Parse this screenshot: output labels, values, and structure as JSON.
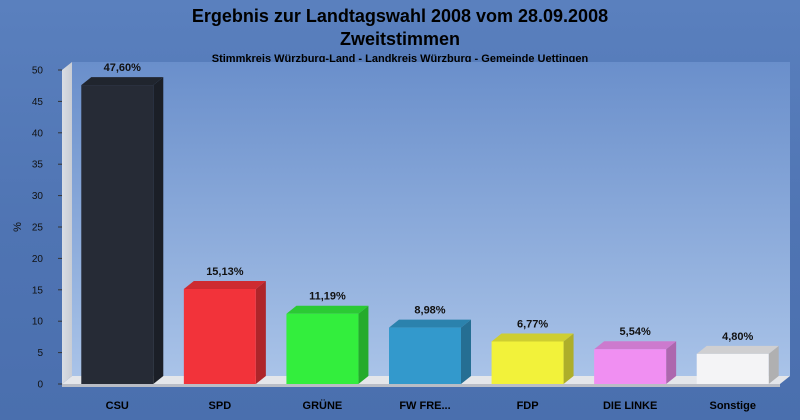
{
  "chart_data": {
    "type": "bar",
    "title": "Ergebnis zur Landtagswahl 2008 vom 28.09.2008",
    "title2": "Zweitstimmen",
    "subtitle": "Stimmkreis Würzburg-Land - Landkreis Würzburg - Gemeinde Uettingen",
    "ylabel": "%",
    "ylim": [
      0,
      50
    ],
    "yticks": [
      0,
      5,
      10,
      15,
      20,
      25,
      30,
      35,
      40,
      45,
      50
    ],
    "categories": [
      "CSU",
      "SPD",
      "GRÜNE",
      "FW FRE...",
      "FDP",
      "DIE LINKE",
      "Sonstige"
    ],
    "values": [
      47.6,
      15.13,
      11.19,
      8.98,
      6.77,
      5.54,
      4.8
    ],
    "value_labels": [
      "47,60%",
      "15,13%",
      "11,19%",
      "8,98%",
      "6,77%",
      "5,54%",
      "4,80%"
    ],
    "colors": [
      "#262b36",
      "#f2333a",
      "#33ee3d",
      "#3399cc",
      "#f2f23a",
      "#f08ff2",
      "#f4f4f6"
    ],
    "background_color": "#5577b8",
    "grid": false,
    "legend": "none"
  }
}
